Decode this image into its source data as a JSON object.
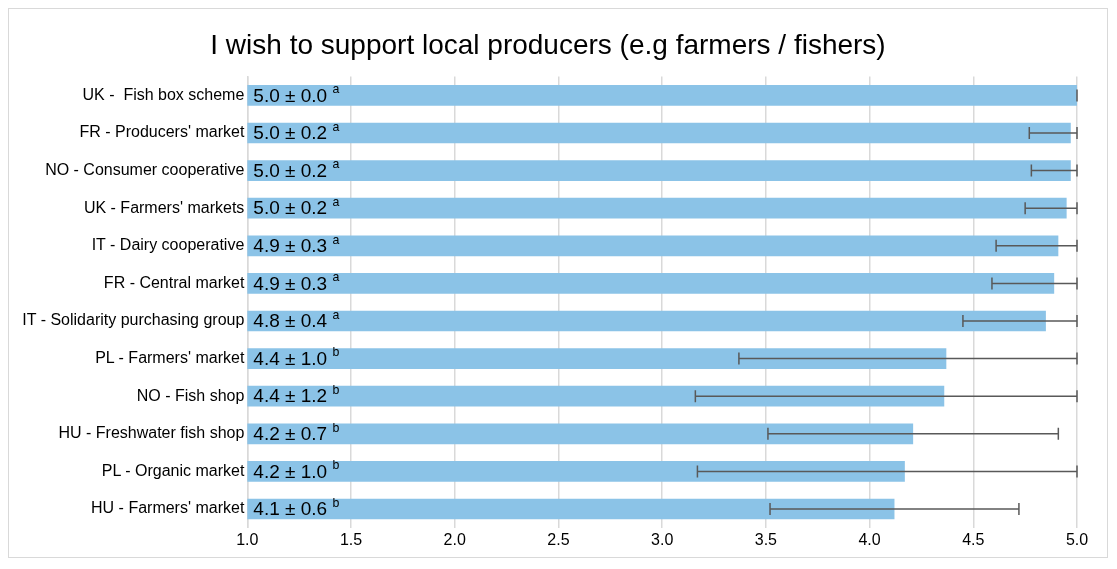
{
  "chart_data": {
    "type": "bar",
    "orientation": "horizontal",
    "title": "I wish to support local producers (e.g farmers / fishers)",
    "categories": [
      "UK -  Fish box scheme",
      "FR - Producers' market",
      "NO - Consumer cooperative",
      "UK - Farmers' markets",
      "IT - Dairy cooperative",
      "FR - Central market",
      "IT - Solidarity purchasing group",
      "PL - Farmers' market",
      "NO - Fish shop",
      "HU - Freshwater fish shop",
      "PL - Organic market",
      "HU - Farmers' market"
    ],
    "values": [
      5.0,
      4.97,
      4.97,
      4.95,
      4.91,
      4.89,
      4.85,
      4.37,
      4.36,
      4.21,
      4.17,
      4.12
    ],
    "errors": [
      [
        5.0,
        5.0
      ],
      [
        4.77,
        5.0
      ],
      [
        4.78,
        5.0
      ],
      [
        4.75,
        5.0
      ],
      [
        4.61,
        5.0
      ],
      [
        4.59,
        5.0
      ],
      [
        4.45,
        5.0
      ],
      [
        3.37,
        5.0
      ],
      [
        3.16,
        5.0
      ],
      [
        3.51,
        4.91
      ],
      [
        3.17,
        5.0
      ],
      [
        3.52,
        4.72
      ]
    ],
    "value_labels": [
      "5.0 ± 0.0 $^{a}$",
      "5.0 ± 0.2 $^{a}$",
      "5.0 ± 0.2 $^{a}$",
      "5.0 ± 0.2 $^{a}$",
      "4.9 ± 0.3 $^{a}$",
      "4.9 ± 0.3 $^{a}$",
      "4.8 ± 0.4 $^{a}$",
      "4.4 ± 1.0 $^{b}$",
      "4.4 ± 1.2 $^{b}$",
      "4.2 ± 0.7 $^{b}$",
      "4.2 ± 1.0 $^{b}$",
      "4.1 ± 0.6 $^{b}$"
    ],
    "color": "#8bc3e7",
    "xlim": [
      1.0,
      5.0
    ],
    "xticks": [
      {
        "value": 1,
        "label": "1.0"
      },
      {
        "value": 1.5,
        "label": "1.5"
      },
      {
        "value": 2,
        "label": "2.0"
      },
      {
        "value": 2.5,
        "label": "2.5"
      },
      {
        "value": 3,
        "label": "3.0"
      },
      {
        "value": 3.5,
        "label": "3.5"
      },
      {
        "value": 4,
        "label": "4.0"
      },
      {
        "value": 4.5,
        "label": "4.5"
      },
      {
        "value": 5,
        "label": "5.0"
      }
    ],
    "grid": "x"
  }
}
